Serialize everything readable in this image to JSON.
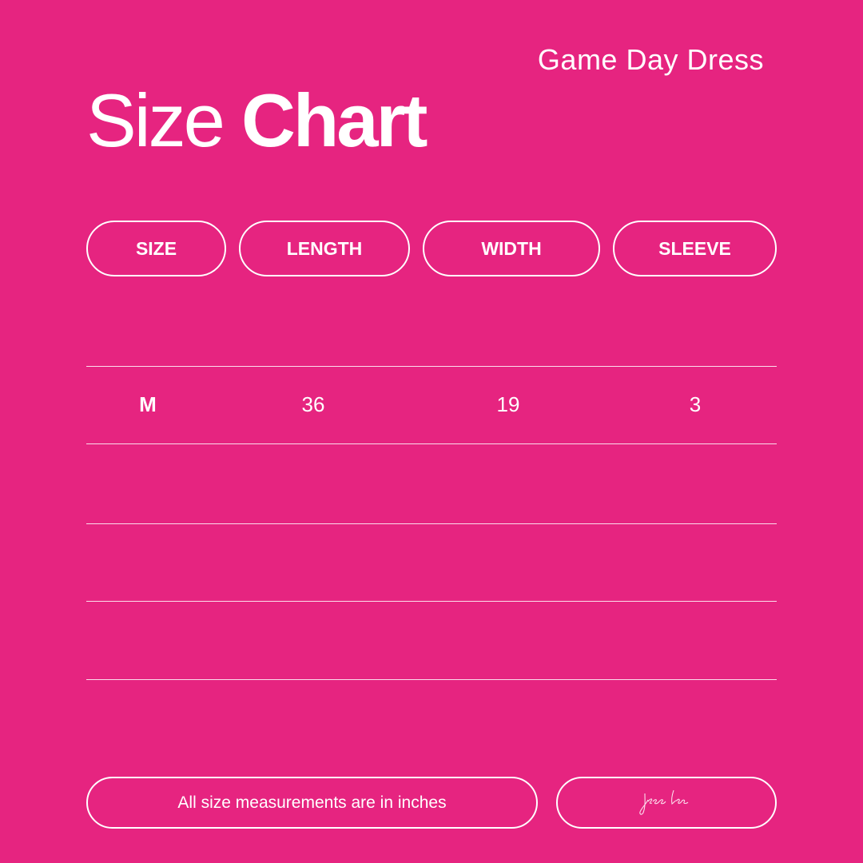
{
  "header": {
    "subtitle": "Game Day Dress",
    "title_light": "Size",
    "title_bold": "Chart"
  },
  "table": {
    "columns": [
      "SIZE",
      "LENGTH",
      "WIDTH",
      "SLEEVE"
    ],
    "rows": [
      [
        "M",
        "36",
        "19",
        "3"
      ],
      [],
      [],
      []
    ]
  },
  "footer": {
    "note": "All size measurements are in inches",
    "signature": "jess lea"
  },
  "colors": {
    "background": "#e62480",
    "foreground": "#ffffff"
  }
}
